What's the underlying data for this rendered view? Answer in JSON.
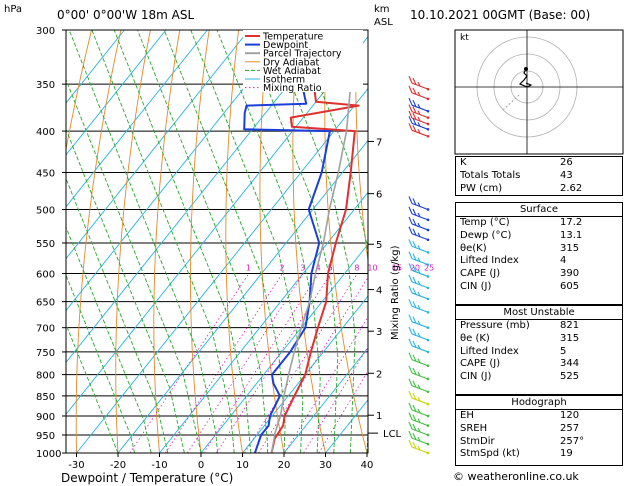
{
  "header": {
    "hpa_label": "hPa",
    "location": "0°00' 0°00'W 18m ASL",
    "km_label": "km",
    "asl_label": "ASL",
    "datetime": "10.10.2021 00GMT (Base: 00)"
  },
  "legend": [
    "Temperature",
    "Dewpoint",
    "Parcel Trajectory",
    "Dry Adiabat",
    "Wet Adiabat",
    "Isotherm",
    "Mixing Ratio"
  ],
  "colors": {
    "temperature": "#e03030",
    "dewpoint": "#1a3fd8",
    "parcel": "#a0a0a0",
    "dry_adiabat": "#e08a2a",
    "wet_adiabat": "#2aa62a",
    "isotherm": "#28b4e0",
    "mixing_ratio": "#d020c0",
    "wind_red": "#e03030",
    "wind_blue": "#1a3fd8",
    "wind_cyan": "#28b4e0",
    "wind_green": "#40c040",
    "wind_yellow": "#c8d800"
  },
  "axes": {
    "xlabel": "Dewpoint / Temperature (°C)",
    "ylabel_right": "Mixing Ratio (g/kg)",
    "lcl_label": "LCL",
    "website": "© weatheronline.co.uk",
    "hodo_label": "kt"
  },
  "chart_data": {
    "type": "line",
    "title": "",
    "xlim": [
      -35,
      40
    ],
    "x_ticks": [
      -30,
      -20,
      -10,
      0,
      10,
      20,
      30,
      40
    ],
    "p_ticks": [
      300,
      350,
      400,
      450,
      500,
      550,
      600,
      650,
      700,
      750,
      800,
      850,
      900,
      950,
      1000
    ],
    "km_ticks": [
      {
        "label": "7",
        "p": 412
      },
      {
        "label": "6",
        "p": 478
      },
      {
        "label": "5",
        "p": 552
      },
      {
        "label": "4",
        "p": 628
      },
      {
        "label": "3",
        "p": 707
      },
      {
        "label": "2",
        "p": 797
      },
      {
        "label": "1",
        "p": 898
      }
    ],
    "mixing_ratio_labels": [
      "1",
      "2",
      "3",
      "4",
      "5",
      "8",
      "10",
      "15",
      "20",
      "25"
    ],
    "mixing_ratio_values": [
      1,
      2,
      3,
      4,
      5,
      8,
      10,
      15,
      20,
      25
    ],
    "lcl_p": 945,
    "series": [
      {
        "name": "Temperature",
        "points": [
          [
            1000,
            17
          ],
          [
            960,
            15
          ],
          [
            925,
            14.5
          ],
          [
            900,
            13
          ],
          [
            850,
            11.5
          ],
          [
            800,
            10
          ],
          [
            750,
            7
          ],
          [
            700,
            4
          ],
          [
            650,
            1
          ],
          [
            600,
            -4
          ],
          [
            550,
            -8
          ],
          [
            500,
            -12
          ],
          [
            450,
            -18
          ],
          [
            400,
            -25
          ],
          [
            395,
            -41
          ],
          [
            385,
            -43
          ],
          [
            372,
            -29
          ],
          [
            368,
            -40
          ],
          [
            300,
            -56
          ]
        ]
      },
      {
        "name": "Dewpoint",
        "points": [
          [
            1000,
            13
          ],
          [
            950,
            11
          ],
          [
            925,
            11
          ],
          [
            900,
            9.5
          ],
          [
            850,
            8
          ],
          [
            820,
            4
          ],
          [
            800,
            2
          ],
          [
            750,
            2
          ],
          [
            700,
            1
          ],
          [
            650,
            -3
          ],
          [
            600,
            -8
          ],
          [
            550,
            -12
          ],
          [
            500,
            -21
          ],
          [
            450,
            -25
          ],
          [
            400,
            -31
          ],
          [
            398,
            -52
          ],
          [
            380,
            -55
          ],
          [
            372,
            -56
          ],
          [
            370,
            -42
          ],
          [
            300,
            -60
          ]
        ]
      },
      {
        "name": "Parcel Trajectory",
        "points": [
          [
            1000,
            17
          ],
          [
            945,
            14
          ],
          [
            900,
            12
          ],
          [
            850,
            9
          ],
          [
            800,
            6
          ],
          [
            750,
            3
          ],
          [
            700,
            0
          ],
          [
            650,
            -3
          ],
          [
            600,
            -7
          ],
          [
            550,
            -11
          ],
          [
            500,
            -16
          ],
          [
            450,
            -21
          ],
          [
            400,
            -27
          ],
          [
            350,
            -35
          ],
          [
            300,
            -43
          ]
        ]
      }
    ]
  },
  "winds": [
    {
      "p": 355,
      "color": "wind_red"
    },
    {
      "p": 365,
      "color": "wind_red"
    },
    {
      "p": 378,
      "color": "wind_blue"
    },
    {
      "p": 385,
      "color": "wind_red"
    },
    {
      "p": 392,
      "color": "wind_red"
    },
    {
      "p": 398,
      "color": "wind_blue"
    },
    {
      "p": 406,
      "color": "wind_red"
    },
    {
      "p": 500,
      "color": "wind_blue"
    },
    {
      "p": 515,
      "color": "wind_blue"
    },
    {
      "p": 530,
      "color": "wind_blue"
    },
    {
      "p": 545,
      "color": "wind_blue"
    },
    {
      "p": 565,
      "color": "wind_cyan"
    },
    {
      "p": 585,
      "color": "wind_cyan"
    },
    {
      "p": 605,
      "color": "wind_cyan"
    },
    {
      "p": 625,
      "color": "wind_cyan"
    },
    {
      "p": 645,
      "color": "wind_cyan"
    },
    {
      "p": 670,
      "color": "wind_cyan"
    },
    {
      "p": 700,
      "color": "wind_cyan"
    },
    {
      "p": 725,
      "color": "wind_cyan"
    },
    {
      "p": 750,
      "color": "wind_cyan"
    },
    {
      "p": 780,
      "color": "wind_green"
    },
    {
      "p": 810,
      "color": "wind_green"
    },
    {
      "p": 840,
      "color": "wind_green"
    },
    {
      "p": 870,
      "color": "wind_yellow"
    },
    {
      "p": 900,
      "color": "wind_green"
    },
    {
      "p": 925,
      "color": "wind_green"
    },
    {
      "p": 950,
      "color": "wind_green"
    },
    {
      "p": 975,
      "color": "wind_green"
    },
    {
      "p": 1000,
      "color": "wind_yellow"
    }
  ],
  "indices": [
    {
      "label": "K",
      "value": "26"
    },
    {
      "label": "Totals Totals",
      "value": "43"
    },
    {
      "label": "PW (cm)",
      "value": "2.62"
    }
  ],
  "surface": {
    "title": "Surface",
    "rows": [
      {
        "label": "Temp (°C)",
        "value": "17.2"
      },
      {
        "label": "Dewp (°C)",
        "value": "13.1"
      },
      {
        "label": "θe(K)",
        "value": "315"
      },
      {
        "label": "Lifted Index",
        "value": "4"
      },
      {
        "label": "CAPE (J)",
        "value": "390"
      },
      {
        "label": "CIN (J)",
        "value": "605"
      }
    ]
  },
  "most_unstable": {
    "title": "Most Unstable",
    "rows": [
      {
        "label": "Pressure (mb)",
        "value": "821"
      },
      {
        "label": "θe (K)",
        "value": "315"
      },
      {
        "label": "Lifted Index",
        "value": "5"
      },
      {
        "label": "CAPE (J)",
        "value": "344"
      },
      {
        "label": "CIN (J)",
        "value": "525"
      }
    ]
  },
  "hodograph": {
    "title": "Hodograph",
    "rows": [
      {
        "label": "EH",
        "value": "120"
      },
      {
        "label": "SREH",
        "value": "257"
      },
      {
        "label": "StmDir",
        "value": "257°"
      },
      {
        "label": "StmSpd (kt)",
        "value": "19"
      }
    ]
  }
}
